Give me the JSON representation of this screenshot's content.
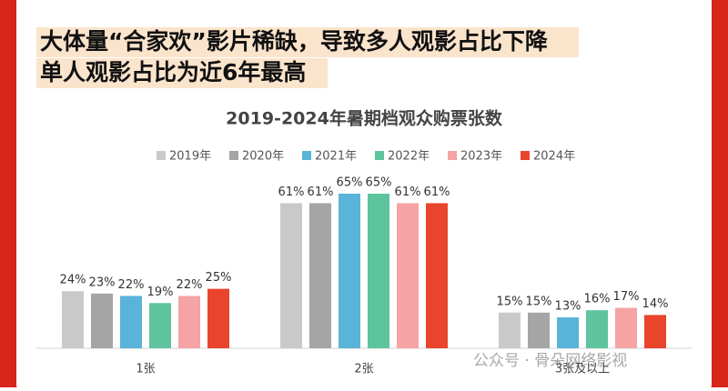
{
  "header": {
    "lines": [
      "大体量“合家欢”影片稀缺，导致多人观影占比下降",
      "单人观影占比为近6年最高"
    ]
  },
  "chart_data": {
    "type": "bar",
    "title": "2019-2024年暑期档观众购票张数",
    "categories": [
      "1张",
      "2张",
      "3张及以上"
    ],
    "series": [
      {
        "name": "2019年",
        "color": "#c9c9c9",
        "values": [
          24,
          61,
          15
        ],
        "value_labels": [
          "24%",
          "61%",
          "15%"
        ]
      },
      {
        "name": "2020年",
        "color": "#a5a5a5",
        "values": [
          23,
          61,
          15
        ],
        "value_labels": [
          "23%",
          "61%",
          "15%"
        ]
      },
      {
        "name": "2021年",
        "color": "#5ab3d9",
        "values": [
          22,
          65,
          13
        ],
        "value_labels": [
          "22%",
          "65%",
          "13%"
        ]
      },
      {
        "name": "2022年",
        "color": "#5dc49e",
        "values": [
          19,
          65,
          16
        ],
        "value_labels": [
          "19%",
          "65%",
          "16%"
        ]
      },
      {
        "name": "2023年",
        "color": "#f5a3a3",
        "values": [
          22,
          61,
          17
        ],
        "value_labels": [
          "22%",
          "61%",
          "17%"
        ]
      },
      {
        "name": "2024年",
        "color": "#e8452c",
        "values": [
          25,
          61,
          14
        ],
        "value_labels": [
          "25%",
          "61%",
          "14%"
        ]
      }
    ]
  },
  "watermark": "公众号 · 骨朵网络影视"
}
